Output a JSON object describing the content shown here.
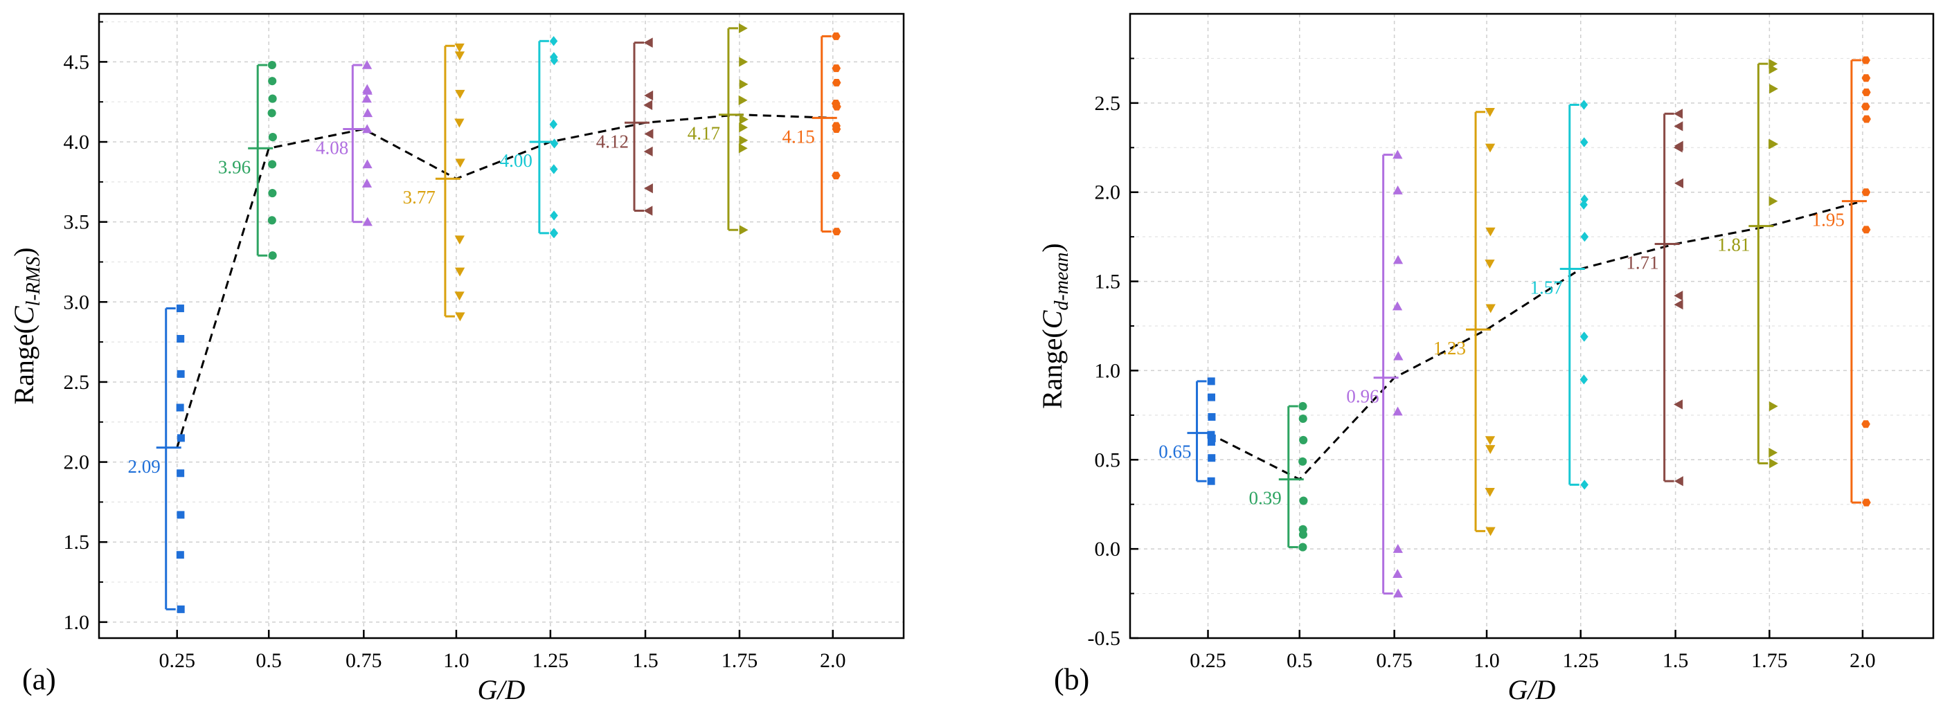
{
  "chart_data": [
    {
      "type": "scatter",
      "panel_label": "(a)",
      "xlabel": "G/D",
      "ylabel_prefix": "Range(",
      "ylabel_var": "C",
      "ylabel_sub": "l-RMS",
      "ylabel_suffix": ")",
      "categories": [
        "0.25",
        "0.5",
        "0.75",
        "1.0",
        "1.25",
        "1.5",
        "1.75",
        "2.0"
      ],
      "ylim": [
        0.9,
        4.8
      ],
      "yticks": [
        "1.0",
        "1.5",
        "2.0",
        "2.5",
        "3.0",
        "3.5",
        "4.0",
        "4.5"
      ],
      "grid": true,
      "series": [
        {
          "name": "0.25",
          "color": "#1f6fd8",
          "marker": "square",
          "mean": 2.09,
          "mean_label": "2.09",
          "min": 1.08,
          "max": 2.96,
          "points": [
            2.96,
            2.77,
            2.55,
            2.34,
            2.15,
            1.93,
            1.67,
            1.42,
            1.08
          ]
        },
        {
          "name": "0.5",
          "color": "#2ea462",
          "marker": "circle",
          "mean": 3.96,
          "mean_label": "3.96",
          "min": 3.29,
          "max": 4.48,
          "points": [
            4.48,
            4.38,
            4.27,
            4.18,
            4.03,
            3.86,
            3.68,
            3.51,
            3.29
          ]
        },
        {
          "name": "0.75",
          "color": "#b06fe0",
          "marker": "triangle-up",
          "mean": 4.08,
          "mean_label": "4.08",
          "min": 3.5,
          "max": 4.48,
          "points": [
            4.48,
            4.33,
            4.32,
            4.27,
            4.18,
            4.08,
            3.86,
            3.74,
            3.5
          ]
        },
        {
          "name": "1.0",
          "color": "#d9a10e",
          "marker": "triangle-down",
          "mean": 3.77,
          "mean_label": "3.77",
          "min": 2.91,
          "max": 4.6,
          "points": [
            4.59,
            4.54,
            4.3,
            4.12,
            3.87,
            3.39,
            3.19,
            3.04,
            2.91
          ]
        },
        {
          "name": "1.25",
          "color": "#17c8d3",
          "marker": "diamond",
          "mean": 4.0,
          "mean_label": "4.00",
          "min": 3.43,
          "max": 4.63,
          "points": [
            4.63,
            4.53,
            4.51,
            4.11,
            3.99,
            3.83,
            3.54,
            3.43,
            3.43
          ]
        },
        {
          "name": "1.5",
          "color": "#8a4a45",
          "marker": "triangle-left",
          "mean": 4.12,
          "mean_label": "4.12",
          "min": 3.57,
          "max": 4.62,
          "points": [
            4.62,
            4.62,
            4.29,
            4.23,
            4.05,
            3.94,
            3.71,
            3.57
          ]
        },
        {
          "name": "1.75",
          "color": "#9a9a14",
          "marker": "triangle-right",
          "mean": 4.17,
          "mean_label": "4.17",
          "min": 3.45,
          "max": 4.71,
          "points": [
            4.71,
            4.5,
            4.36,
            4.26,
            4.14,
            4.09,
            4.01,
            3.96,
            3.45
          ]
        },
        {
          "name": "2.0",
          "color": "#f46811",
          "marker": "hexagon",
          "mean": 4.15,
          "mean_label": "4.15",
          "min": 3.44,
          "max": 4.66,
          "points": [
            4.66,
            4.46,
            4.37,
            4.24,
            4.22,
            4.1,
            4.08,
            3.79,
            3.44
          ]
        }
      ]
    },
    {
      "type": "scatter",
      "panel_label": "(b)",
      "xlabel": "G/D",
      "ylabel_prefix": "Range(",
      "ylabel_var": "C",
      "ylabel_sub": "d-mean",
      "ylabel_suffix": ")",
      "categories": [
        "0.25",
        "0.5",
        "0.75",
        "1.0",
        "1.25",
        "1.5",
        "1.75",
        "2.0"
      ],
      "ylim": [
        -0.5,
        3.0
      ],
      "yticks": [
        "-0.5",
        "0.0",
        "0.5",
        "1.0",
        "1.5",
        "2.0",
        "2.5"
      ],
      "grid": true,
      "series": [
        {
          "name": "0.25",
          "color": "#1f6fd8",
          "marker": "square",
          "mean": 0.65,
          "mean_label": "0.65",
          "min": 0.38,
          "max": 0.94,
          "points": [
            0.94,
            0.85,
            0.74,
            0.64,
            0.62,
            0.6,
            0.51,
            0.38
          ]
        },
        {
          "name": "0.5",
          "color": "#2ea462",
          "marker": "circle",
          "mean": 0.39,
          "mean_label": "0.39",
          "min": 0.01,
          "max": 0.8,
          "points": [
            0.8,
            0.73,
            0.61,
            0.49,
            0.27,
            0.11,
            0.08,
            0.01
          ]
        },
        {
          "name": "0.75",
          "color": "#b06fe0",
          "marker": "triangle-up",
          "mean": 0.96,
          "mean_label": "0.96",
          "min": -0.25,
          "max": 2.21,
          "points": [
            2.21,
            2.01,
            1.62,
            1.36,
            1.08,
            0.77,
            0.0,
            -0.14,
            -0.25
          ]
        },
        {
          "name": "1.0",
          "color": "#d9a10e",
          "marker": "triangle-down",
          "mean": 1.23,
          "mean_label": "1.23",
          "min": 0.1,
          "max": 2.45,
          "points": [
            2.45,
            2.25,
            1.78,
            1.6,
            1.35,
            0.61,
            0.56,
            0.32,
            0.1
          ]
        },
        {
          "name": "1.25",
          "color": "#17c8d3",
          "marker": "diamond",
          "mean": 1.57,
          "mean_label": "1.57",
          "min": 0.36,
          "max": 2.49,
          "points": [
            2.49,
            2.28,
            1.96,
            1.93,
            1.75,
            1.19,
            1.19,
            0.95,
            0.36
          ]
        },
        {
          "name": "1.5",
          "color": "#8a4a45",
          "marker": "triangle-left",
          "mean": 1.71,
          "mean_label": "1.71",
          "min": 0.38,
          "max": 2.44,
          "points": [
            2.44,
            2.37,
            2.26,
            2.25,
            2.05,
            1.42,
            1.37,
            0.81,
            0.38
          ]
        },
        {
          "name": "1.75",
          "color": "#9a9a14",
          "marker": "triangle-right",
          "mean": 1.81,
          "mean_label": "1.81",
          "min": 0.48,
          "max": 2.72,
          "points": [
            2.72,
            2.69,
            2.58,
            2.27,
            2.27,
            1.95,
            0.8,
            0.54,
            0.48
          ]
        },
        {
          "name": "2.0",
          "color": "#f46811",
          "marker": "hexagon",
          "mean": 1.95,
          "mean_label": "1.95",
          "min": 0.26,
          "max": 2.74,
          "points": [
            2.74,
            2.64,
            2.56,
            2.48,
            2.41,
            2.0,
            1.79,
            0.7,
            0.26
          ]
        }
      ]
    }
  ]
}
